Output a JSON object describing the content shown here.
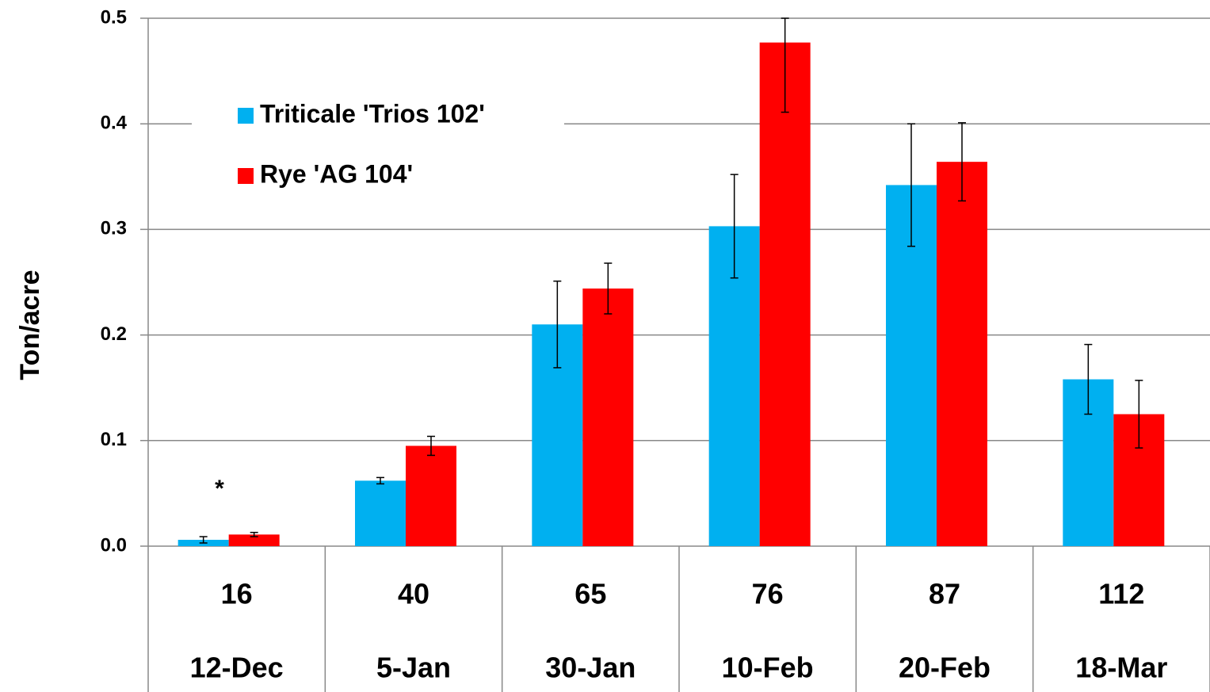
{
  "chart_data": {
    "type": "bar",
    "y_label": "Ton/acre",
    "categories": [
      "16",
      "40",
      "65",
      "76",
      "87",
      "112"
    ],
    "category_dates": [
      "12-Dec",
      "5-Jan",
      "30-Jan",
      "10-Feb",
      "20-Feb",
      "18-Mar"
    ],
    "series": [
      {
        "name": "Triticale 'Trios 102'",
        "color": "#00b0f0",
        "values": [
          0.006,
          0.062,
          0.21,
          0.303,
          0.342,
          0.158
        ],
        "errors": [
          0.003,
          0.003,
          0.041,
          0.049,
          0.058,
          0.033
        ]
      },
      {
        "name": "Rye 'AG 104'",
        "color": "#ff0000",
        "values": [
          0.011,
          0.095,
          0.244,
          0.477,
          0.364,
          0.125
        ],
        "errors": [
          0.002,
          0.009,
          0.024,
          0.066,
          0.037,
          0.032
        ]
      }
    ],
    "annotation": "*",
    "ylim": [
      0,
      0.5
    ],
    "yticks": [
      {
        "value": 0,
        "label": "0.0"
      },
      0.1,
      0.2,
      0.3,
      0.4,
      0.5
    ],
    "grid": true,
    "legend": "upper left"
  }
}
